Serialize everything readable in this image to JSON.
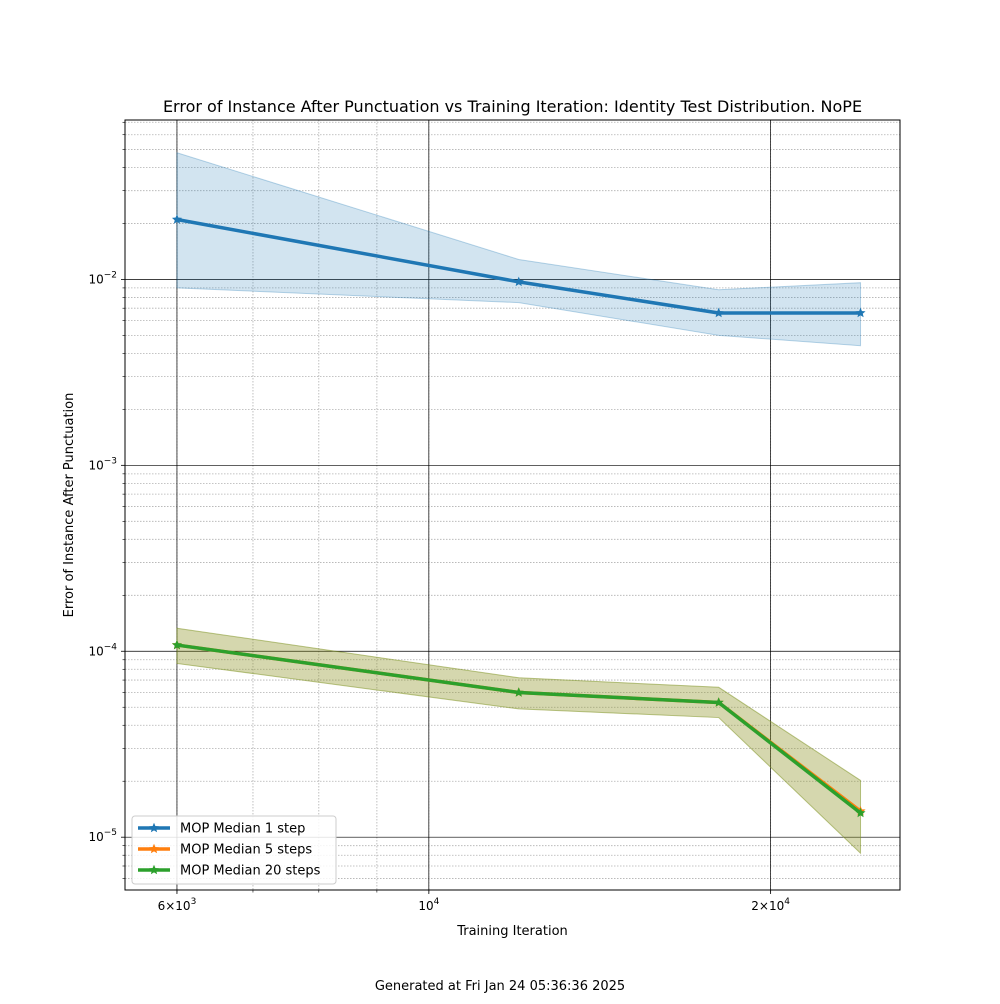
{
  "chart_data": {
    "type": "line",
    "title": "Error of Instance After Punctuation vs Training Iteration: Identity Test Distribution. NoPE",
    "xlabel": "Training Iteration",
    "ylabel": "Error of Instance After Punctuation",
    "x_scale": "log",
    "y_scale": "log",
    "xlim": [
      5400,
      26000
    ],
    "ylim": [
      5.2e-06,
      0.072
    ],
    "x_ticks": [
      {
        "value": 6000,
        "base": "6×10",
        "exp": "3"
      },
      {
        "value": 10000,
        "base": "10",
        "exp": "4"
      },
      {
        "value": 20000,
        "base": "2×10",
        "exp": "4"
      }
    ],
    "y_ticks": [
      {
        "value": 1e-05,
        "base": "10",
        "exp": "−5"
      },
      {
        "value": 0.0001,
        "base": "10",
        "exp": "−4"
      },
      {
        "value": 0.001,
        "base": "10",
        "exp": "−3"
      },
      {
        "value": 0.01,
        "base": "10",
        "exp": "−2"
      }
    ],
    "grid": true,
    "legend_position": "bottom-left",
    "series": [
      {
        "name": "MOP Median 1 step",
        "color": "#1f77b4",
        "x": [
          6000,
          12000,
          18000,
          24000
        ],
        "y": [
          0.021,
          0.0097,
          0.0066,
          0.0066
        ],
        "lower": [
          0.009,
          0.0075,
          0.005,
          0.0044
        ],
        "upper": [
          0.048,
          0.0128,
          0.0088,
          0.0096
        ]
      },
      {
        "name": "MOP Median 5 steps",
        "color": "#ff7f0e",
        "x": [
          6000,
          12000,
          18000,
          24000
        ],
        "y": [
          0.000108,
          6e-05,
          5.3e-05,
          1.38e-05
        ],
        "lower": [
          8.6e-05,
          4.9e-05,
          4.4e-05,
          8.2e-06
        ],
        "upper": [
          0.000133,
          7.2e-05,
          6.4e-05,
          2.02e-05
        ]
      },
      {
        "name": "MOP Median 20 steps",
        "color": "#2ca02c",
        "x": [
          6000,
          12000,
          18000,
          24000
        ],
        "y": [
          0.000108,
          6e-05,
          5.3e-05,
          1.35e-05
        ],
        "lower": [
          8.6e-05,
          4.9e-05,
          4.4e-05,
          8.2e-06
        ],
        "upper": [
          0.000133,
          7.2e-05,
          6.4e-05,
          2.02e-05
        ]
      }
    ]
  },
  "footer": "Generated at Fri Jan 24 05:36:36 2025"
}
